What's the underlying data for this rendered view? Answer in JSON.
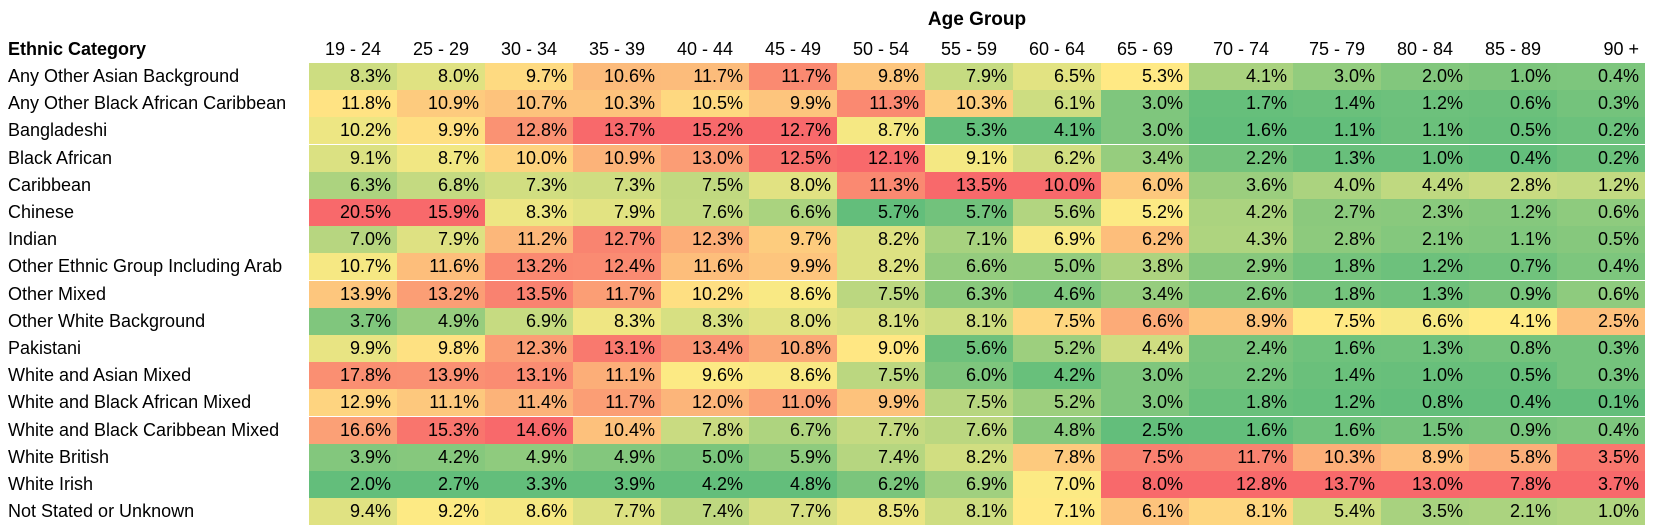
{
  "chart_data": {
    "type": "heatmap",
    "title": "Age Group",
    "row_header": "Ethnic Category",
    "categories": [
      "19 - 24",
      "25 - 29",
      "30 - 34",
      "35 - 39",
      "40 - 44",
      "45 - 49",
      "50 - 54",
      "55 - 59",
      "60 - 64",
      "65 - 69",
      "70 - 74",
      "75 - 79",
      "80 - 84",
      "85 - 89",
      "90 +"
    ],
    "colorscale": {
      "low": "#63BE7B",
      "mid": "#FFEB84",
      "high": "#F8696B"
    },
    "rows": [
      {
        "name": "Any Other Asian Background",
        "values": [
          "8.3%",
          "8.0%",
          "9.7%",
          "10.6%",
          "11.7%",
          "11.7%",
          "9.8%",
          "7.9%",
          "6.5%",
          "5.3%",
          "4.1%",
          "3.0%",
          "2.0%",
          "1.0%",
          "0.4%"
        ]
      },
      {
        "name": "Any Other Black African Caribbean",
        "values": [
          "11.8%",
          "10.9%",
          "10.7%",
          "10.3%",
          "10.5%",
          "9.9%",
          "11.3%",
          "10.3%",
          "6.1%",
          "3.0%",
          "1.7%",
          "1.4%",
          "1.2%",
          "0.6%",
          "0.3%"
        ]
      },
      {
        "name": "Bangladeshi",
        "values": [
          "10.2%",
          "9.9%",
          "12.8%",
          "13.7%",
          "15.2%",
          "12.7%",
          "8.7%",
          "5.3%",
          "4.1%",
          "3.0%",
          "1.6%",
          "1.1%",
          "1.1%",
          "0.5%",
          "0.2%"
        ]
      },
      {
        "name": "Black African",
        "values": [
          "9.1%",
          "8.7%",
          "10.0%",
          "10.9%",
          "13.0%",
          "12.5%",
          "12.1%",
          "9.1%",
          "6.2%",
          "3.4%",
          "2.2%",
          "1.3%",
          "1.0%",
          "0.4%",
          "0.2%"
        ]
      },
      {
        "name": "Caribbean",
        "values": [
          "6.3%",
          "6.8%",
          "7.3%",
          "7.3%",
          "7.5%",
          "8.0%",
          "11.3%",
          "13.5%",
          "10.0%",
          "6.0%",
          "3.6%",
          "4.0%",
          "4.4%",
          "2.8%",
          "1.2%"
        ]
      },
      {
        "name": "Chinese",
        "values": [
          "20.5%",
          "15.9%",
          "8.3%",
          "7.9%",
          "7.6%",
          "6.6%",
          "5.7%",
          "5.7%",
          "5.6%",
          "5.2%",
          "4.2%",
          "2.7%",
          "2.3%",
          "1.2%",
          "0.6%"
        ]
      },
      {
        "name": "Indian",
        "values": [
          "7.0%",
          "7.9%",
          "11.2%",
          "12.7%",
          "12.3%",
          "9.7%",
          "8.2%",
          "7.1%",
          "6.9%",
          "6.2%",
          "4.3%",
          "2.8%",
          "2.1%",
          "1.1%",
          "0.5%"
        ]
      },
      {
        "name": "Other Ethnic Group Including Arab",
        "values": [
          "10.7%",
          "11.6%",
          "13.2%",
          "12.4%",
          "11.6%",
          "9.9%",
          "8.2%",
          "6.6%",
          "5.0%",
          "3.8%",
          "2.9%",
          "1.8%",
          "1.2%",
          "0.7%",
          "0.4%"
        ]
      },
      {
        "name": "Other Mixed",
        "values": [
          "13.9%",
          "13.2%",
          "13.5%",
          "11.7%",
          "10.2%",
          "8.6%",
          "7.5%",
          "6.3%",
          "4.6%",
          "3.4%",
          "2.6%",
          "1.8%",
          "1.3%",
          "0.9%",
          "0.6%"
        ]
      },
      {
        "name": "Other White Background",
        "values": [
          "3.7%",
          "4.9%",
          "6.9%",
          "8.3%",
          "8.3%",
          "8.0%",
          "8.1%",
          "8.1%",
          "7.5%",
          "6.6%",
          "8.9%",
          "7.5%",
          "6.6%",
          "4.1%",
          "2.5%"
        ]
      },
      {
        "name": "Pakistani",
        "values": [
          "9.9%",
          "9.8%",
          "12.3%",
          "13.1%",
          "13.4%",
          "10.8%",
          "9.0%",
          "5.6%",
          "5.2%",
          "4.4%",
          "2.4%",
          "1.6%",
          "1.3%",
          "0.8%",
          "0.3%"
        ]
      },
      {
        "name": "White and Asian Mixed",
        "values": [
          "17.8%",
          "13.9%",
          "13.1%",
          "11.1%",
          "9.6%",
          "8.6%",
          "7.5%",
          "6.0%",
          "4.2%",
          "3.0%",
          "2.2%",
          "1.4%",
          "1.0%",
          "0.5%",
          "0.3%"
        ]
      },
      {
        "name": "White and Black African Mixed",
        "values": [
          "12.9%",
          "11.1%",
          "11.4%",
          "11.7%",
          "12.0%",
          "11.0%",
          "9.9%",
          "7.5%",
          "5.2%",
          "3.0%",
          "1.8%",
          "1.2%",
          "0.8%",
          "0.4%",
          "0.1%"
        ]
      },
      {
        "name": "White and Black Caribbean Mixed",
        "values": [
          "16.6%",
          "15.3%",
          "14.6%",
          "10.4%",
          "7.8%",
          "6.7%",
          "7.7%",
          "7.6%",
          "4.8%",
          "2.5%",
          "1.6%",
          "1.6%",
          "1.5%",
          "0.9%",
          "0.4%"
        ]
      },
      {
        "name": "White British",
        "values": [
          "3.9%",
          "4.2%",
          "4.9%",
          "4.9%",
          "5.0%",
          "5.9%",
          "7.4%",
          "8.2%",
          "7.8%",
          "7.5%",
          "11.7%",
          "10.3%",
          "8.9%",
          "5.8%",
          "3.5%"
        ]
      },
      {
        "name": "White Irish",
        "values": [
          "2.0%",
          "2.7%",
          "3.3%",
          "3.9%",
          "4.2%",
          "4.8%",
          "6.2%",
          "6.9%",
          "7.0%",
          "8.0%",
          "12.8%",
          "13.7%",
          "13.0%",
          "7.8%",
          "3.7%"
        ]
      },
      {
        "name": "Not Stated or Unknown",
        "values": [
          "9.4%",
          "9.2%",
          "8.6%",
          "7.7%",
          "7.4%",
          "7.7%",
          "8.5%",
          "8.1%",
          "7.1%",
          "6.1%",
          "8.1%",
          "5.4%",
          "3.5%",
          "2.1%",
          "1.0%"
        ]
      }
    ]
  }
}
